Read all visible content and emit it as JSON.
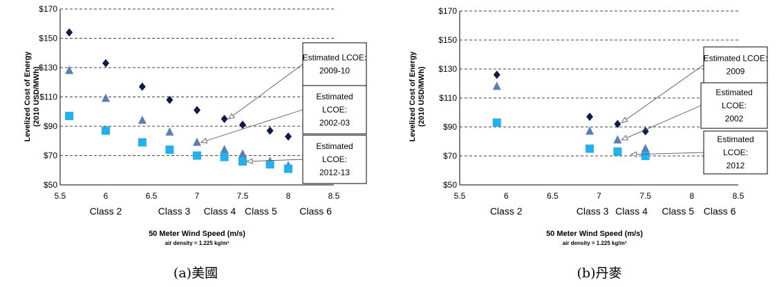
{
  "chart_data": [
    {
      "type": "scatter",
      "caption": "(a)美國",
      "xlabel": "50 Meter Wind Speed (m/s)",
      "xlabel_sub": "air density = 1.225 kg/m³",
      "ylabel": [
        "Levelized Cost of Energy",
        "(2010 USD/MWh)"
      ],
      "xlim": [
        5.5,
        8.5
      ],
      "ylim": [
        50,
        170
      ],
      "xticks": [
        5.5,
        6,
        6.5,
        7,
        7.5,
        8,
        8.5
      ],
      "yticks": [
        50,
        70,
        90,
        110,
        130,
        150,
        170
      ],
      "ytick_prefix": "$",
      "grid": "horizontal dashed",
      "classes": [
        {
          "label": "Class 2",
          "x": 6
        },
        {
          "label": "Class 3",
          "x": 6.75
        },
        {
          "label": "Class 4",
          "x": 7.25
        },
        {
          "label": "Class 5",
          "x": 7.7
        },
        {
          "label": "Class 6",
          "x": 8.3
        }
      ],
      "series": [
        {
          "key": "s2009",
          "marker": "diamond",
          "color": "#0d1b4f",
          "x": [
            5.6,
            6,
            6.4,
            6.7,
            7,
            7.3,
            7.5,
            7.8,
            8
          ],
          "y": [
            154,
            133,
            117,
            108,
            101,
            95,
            91,
            87,
            83
          ]
        },
        {
          "key": "s2002",
          "marker": "triangle",
          "color": "#5b7fb4",
          "x": [
            5.6,
            6,
            6.4,
            6.7,
            7,
            7.3,
            7.5,
            7.8,
            8
          ],
          "y": [
            128,
            109,
            94,
            86,
            79,
            74,
            71,
            66,
            63
          ]
        },
        {
          "key": "s2012",
          "marker": "square",
          "color": "#23b0ec",
          "x": [
            5.6,
            6,
            6.4,
            6.7,
            7,
            7.3,
            7.5,
            7.8,
            8
          ],
          "y": [
            97,
            87,
            79,
            74,
            70,
            69,
            66,
            64,
            61
          ]
        }
      ],
      "annotations": [
        {
          "lines": [
            "Estimated LCOE:",
            "2009-10"
          ],
          "series": "s2009",
          "target": [
            7.3,
            95
          ]
        },
        {
          "lines": [
            "Estimated",
            "LCOE:",
            "2002-03"
          ],
          "series": "s2002",
          "target": [
            7.0,
            79
          ]
        },
        {
          "lines": [
            "Estimated",
            "LCOE:",
            "2012-13"
          ],
          "series": "s2012",
          "target": [
            7.5,
            66
          ]
        }
      ]
    },
    {
      "type": "scatter",
      "caption": "(b)丹麥",
      "xlabel": "50 Meter Wind Speed (m/s)",
      "xlabel_sub": "air density = 1.225 kg/m³",
      "ylabel": [
        "Levelized Cost of Energy",
        "(2010 USD/MWh)"
      ],
      "xlim": [
        5.5,
        8.5
      ],
      "ylim": [
        50,
        170
      ],
      "xticks": [
        5.5,
        6,
        6.5,
        7,
        7.5,
        8,
        8.5
      ],
      "yticks": [
        50,
        70,
        90,
        110,
        130,
        150,
        170
      ],
      "ytick_prefix": "$",
      "grid": "horizontal dashed",
      "classes": [
        {
          "label": "Class 2",
          "x": 6
        },
        {
          "label": "Class 3",
          "x": 6.93
        },
        {
          "label": "Class 4",
          "x": 7.35
        },
        {
          "label": "Class 5",
          "x": 7.85
        },
        {
          "label": "Class 6",
          "x": 8.3
        }
      ],
      "series": [
        {
          "key": "s2009",
          "marker": "diamond",
          "color": "#0d1b4f",
          "x": [
            5.9,
            6.9,
            7.2,
            7.5
          ],
          "y": [
            126,
            97,
            92,
            87
          ]
        },
        {
          "key": "s2002",
          "marker": "triangle",
          "color": "#5b7fb4",
          "x": [
            5.9,
            6.9,
            7.2,
            7.5
          ],
          "y": [
            118,
            87,
            81,
            75
          ]
        },
        {
          "key": "s2012",
          "marker": "square",
          "color": "#23b0ec",
          "x": [
            5.9,
            6.9,
            7.2,
            7.5
          ],
          "y": [
            93,
            75,
            73,
            70
          ]
        }
      ],
      "annotations": [
        {
          "lines": [
            "Estimated LCOE:",
            "2009"
          ],
          "series": "s2009",
          "target": [
            7.2,
            93
          ]
        },
        {
          "lines": [
            "Estimated",
            "LCOE:",
            "2002"
          ],
          "series": "s2002",
          "target": [
            7.2,
            81
          ]
        },
        {
          "lines": [
            "Estimated",
            "LCOE:",
            "2012"
          ],
          "series": "s2012",
          "target": [
            7.3,
            71
          ]
        }
      ]
    }
  ]
}
